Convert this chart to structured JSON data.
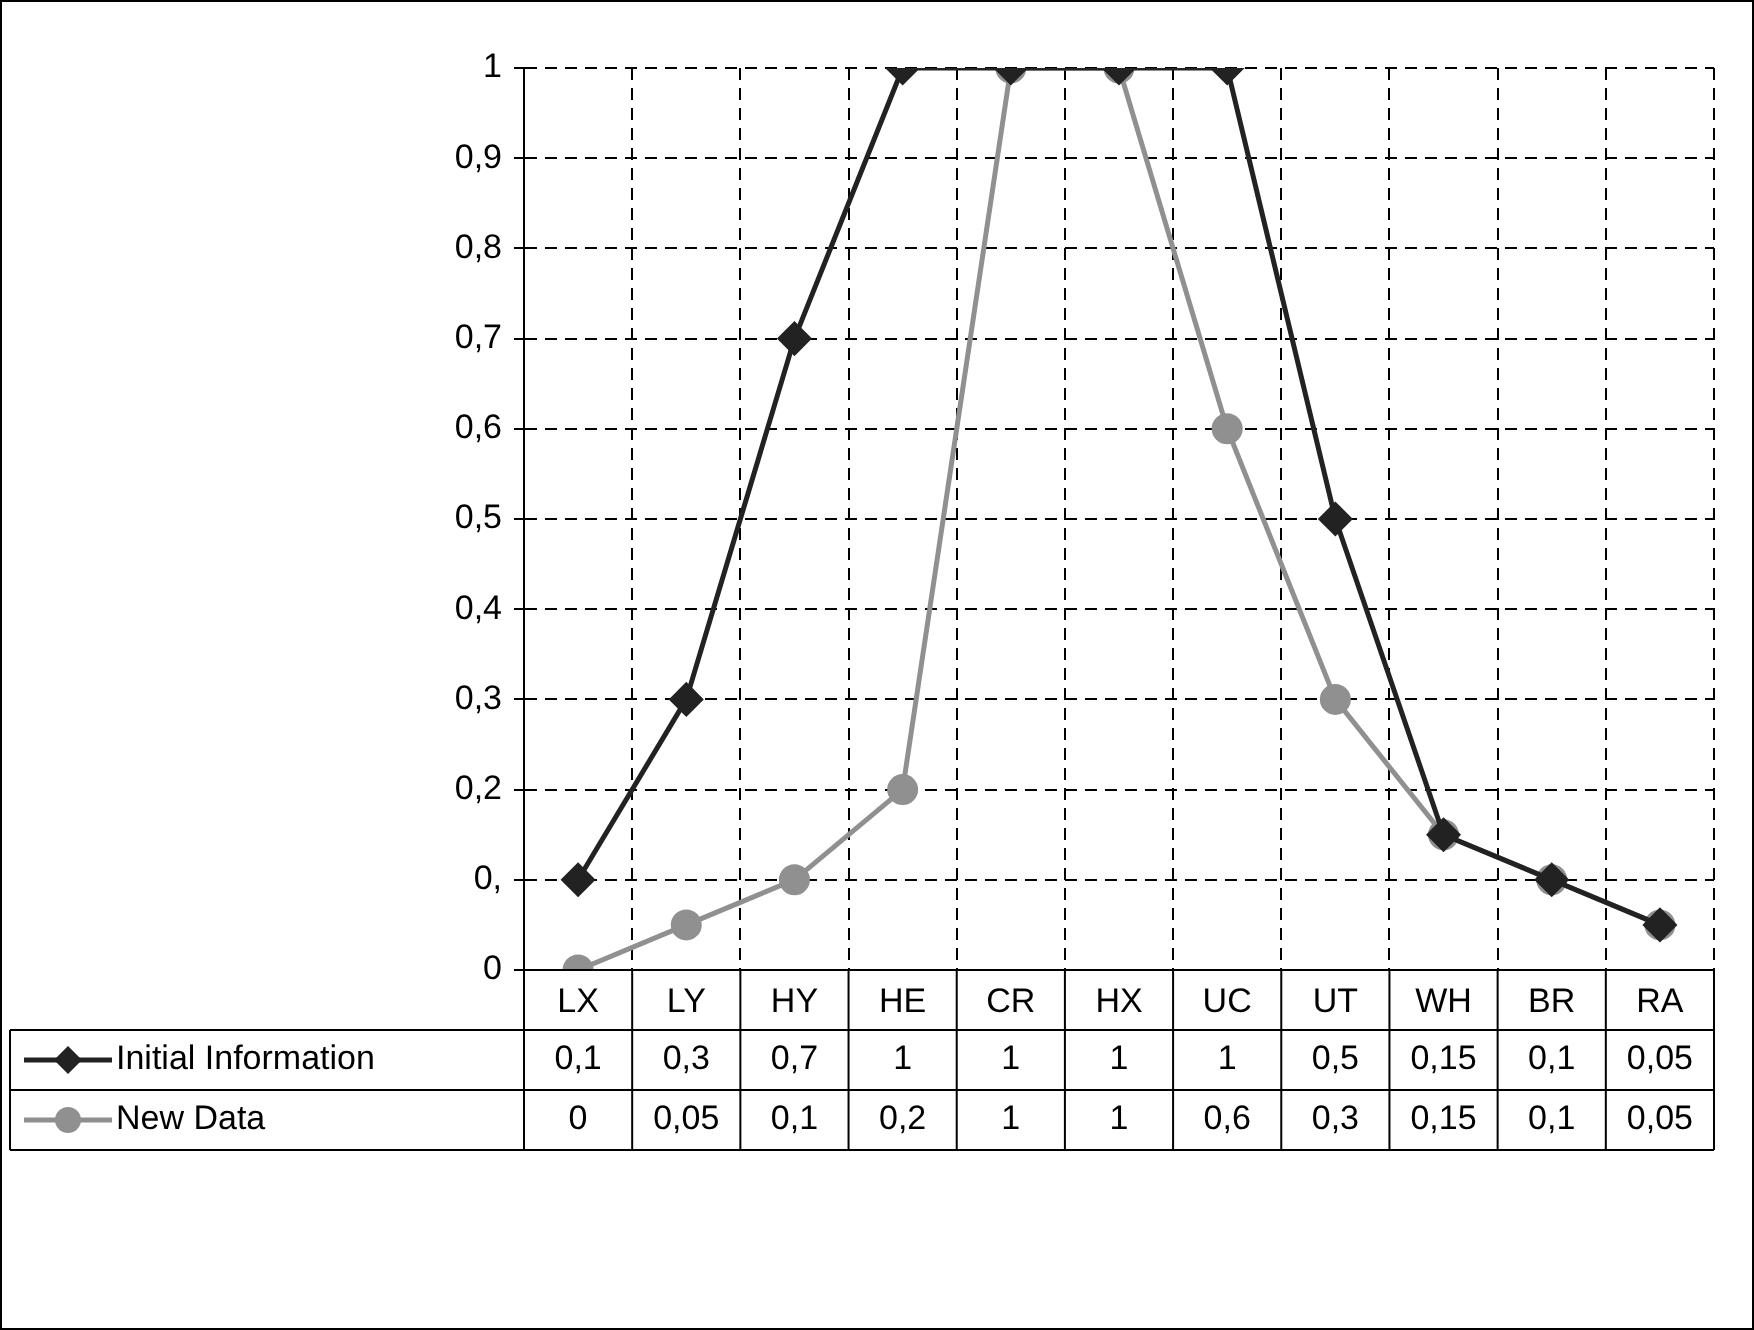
{
  "chart_data": {
    "type": "line",
    "categories": [
      "LX",
      "LY",
      "HY",
      "HE",
      "CR",
      "HX",
      "UC",
      "UT",
      "WH",
      "BR",
      "RA"
    ],
    "series": [
      {
        "name": "Initial Information",
        "color": "#222222",
        "marker": "diamond",
        "values": [
          0.1,
          0.3,
          0.7,
          1,
          1,
          1,
          1,
          0.5,
          0.15,
          0.1,
          0.05
        ],
        "value_labels": [
          "0,1",
          "0,3",
          "0,7",
          "1",
          "1",
          "1",
          "1",
          "0,5",
          "0,15",
          "0,1",
          "0,05"
        ]
      },
      {
        "name": "New Data",
        "color": "#909090",
        "marker": "circle",
        "values": [
          0,
          0.05,
          0.1,
          0.2,
          1,
          1,
          0.6,
          0.3,
          0.15,
          0.1,
          0.05
        ],
        "value_labels": [
          "0",
          "0,05",
          "0,1",
          "0,2",
          "1",
          "1",
          "0,6",
          "0,3",
          "0,15",
          "0,1",
          "0,05"
        ]
      }
    ],
    "ylim": [
      0,
      1
    ],
    "yticks": [
      0,
      {
        "value": 0.1,
        "label": "0,"
      },
      {
        "value": 0.2,
        "label": "0,2"
      },
      {
        "value": 0.3,
        "label": "0,3"
      },
      {
        "value": 0.4,
        "label": "0,4"
      },
      {
        "value": 0.5,
        "label": "0,5"
      },
      {
        "value": 0.6,
        "label": "0,6"
      },
      {
        "value": 0.7,
        "label": "0,7"
      },
      {
        "value": 0.8,
        "label": "0,8"
      },
      {
        "value": 0.9,
        "label": "0,9"
      },
      1
    ],
    "grid": true,
    "legend": "bottom left",
    "line_style": "solid"
  }
}
